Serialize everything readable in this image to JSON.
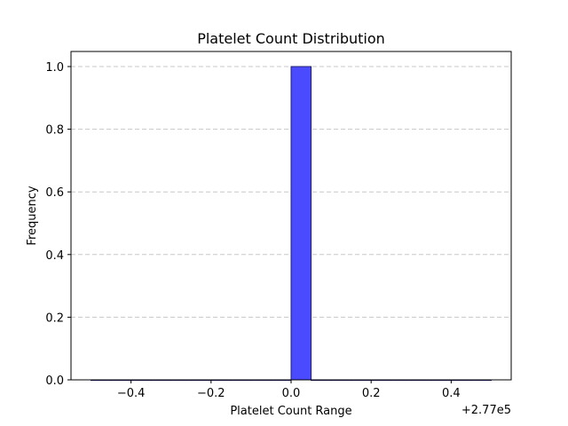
{
  "chart_data": {
    "type": "bar",
    "title": "Platelet Count Distribution",
    "xlabel": "Platelet Count Range",
    "ylabel": "Frequency",
    "x_offset_label": "+2.77e5",
    "x_offset": 277000,
    "xlim": [
      -0.55,
      0.55
    ],
    "ylim": [
      0,
      1.05
    ],
    "xticks": [
      -0.4,
      -0.2,
      0.0,
      0.2,
      0.4
    ],
    "xtick_labels": [
      "−0.4",
      "−0.2",
      "0.0",
      "0.2",
      "0.4"
    ],
    "yticks": [
      0.0,
      0.2,
      0.4,
      0.6,
      0.8,
      1.0
    ],
    "ytick_labels": [
      "0.0",
      "0.2",
      "0.4",
      "0.6",
      "0.8",
      "1.0"
    ],
    "grid": "y-dashed",
    "bar_color": "#4a4aff",
    "bar_edge_color": "#22226e",
    "bins": [
      {
        "x0": -0.5,
        "x1": -0.45,
        "value": 0
      },
      {
        "x0": -0.45,
        "x1": -0.4,
        "value": 0
      },
      {
        "x0": -0.4,
        "x1": -0.35,
        "value": 0
      },
      {
        "x0": -0.35,
        "x1": -0.3,
        "value": 0
      },
      {
        "x0": -0.3,
        "x1": -0.25,
        "value": 0
      },
      {
        "x0": -0.25,
        "x1": -0.2,
        "value": 0
      },
      {
        "x0": -0.2,
        "x1": -0.15,
        "value": 0
      },
      {
        "x0": -0.15,
        "x1": -0.1,
        "value": 0
      },
      {
        "x0": -0.1,
        "x1": -0.05,
        "value": 0
      },
      {
        "x0": -0.05,
        "x1": 0.0,
        "value": 0
      },
      {
        "x0": 0.0,
        "x1": 0.05,
        "value": 1
      },
      {
        "x0": 0.05,
        "x1": 0.1,
        "value": 0
      },
      {
        "x0": 0.1,
        "x1": 0.15,
        "value": 0
      },
      {
        "x0": 0.15,
        "x1": 0.2,
        "value": 0
      },
      {
        "x0": 0.2,
        "x1": 0.25,
        "value": 0
      },
      {
        "x0": 0.25,
        "x1": 0.3,
        "value": 0
      },
      {
        "x0": 0.3,
        "x1": 0.35,
        "value": 0
      },
      {
        "x0": 0.35,
        "x1": 0.4,
        "value": 0
      },
      {
        "x0": 0.4,
        "x1": 0.45,
        "value": 0
      },
      {
        "x0": 0.45,
        "x1": 0.5,
        "value": 0
      }
    ]
  }
}
